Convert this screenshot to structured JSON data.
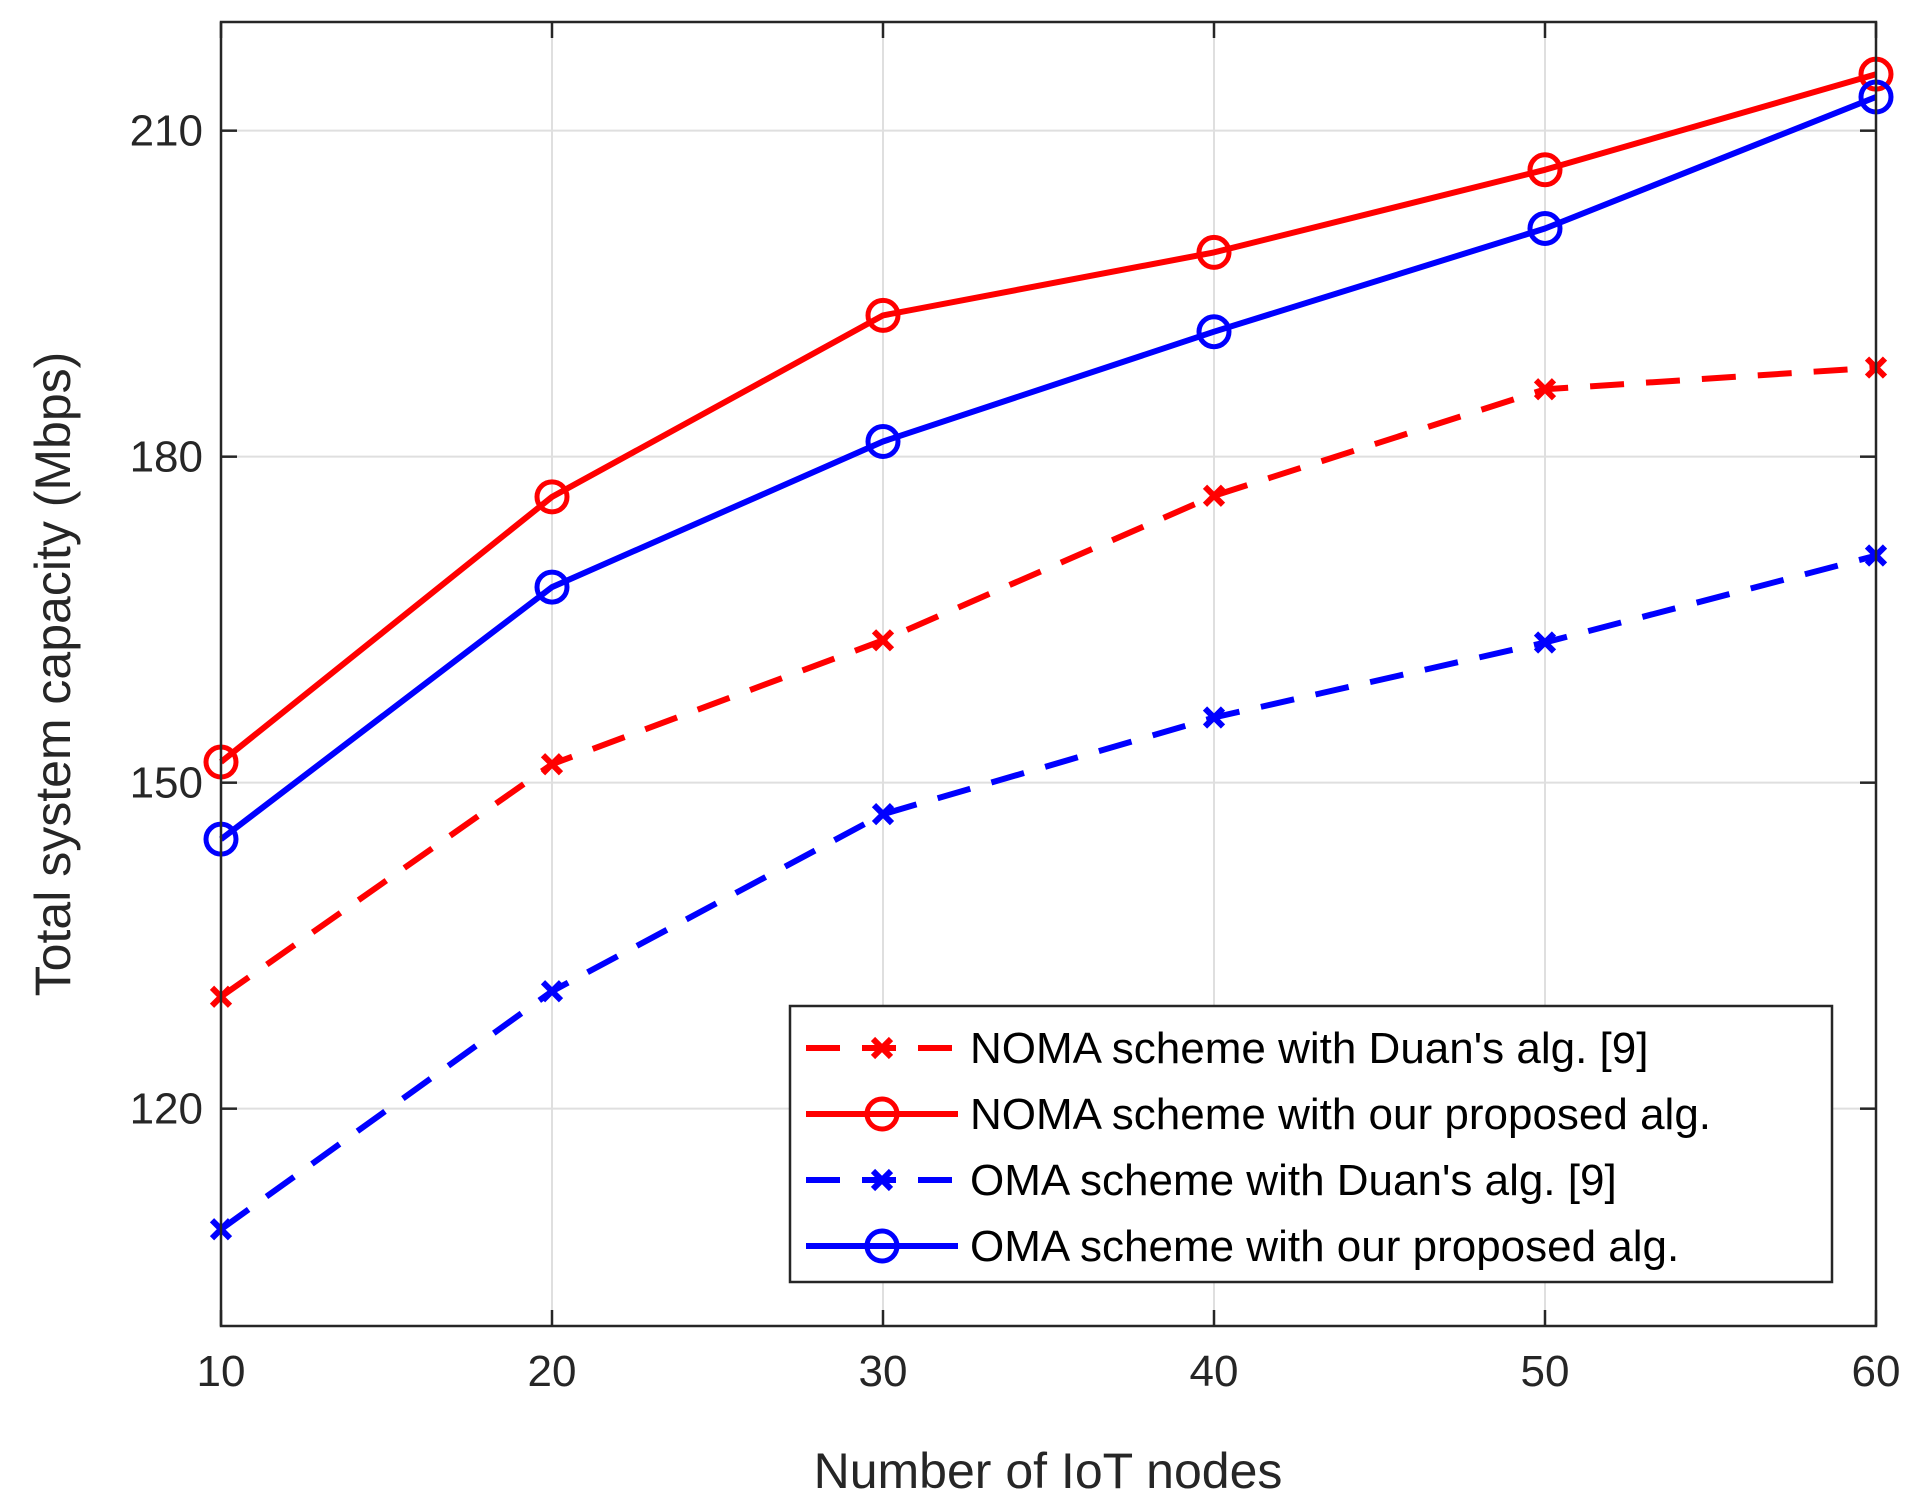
{
  "chart_data": {
    "type": "line",
    "xlabel": "Number of IoT nodes",
    "ylabel": "Total system capacity (Mbps)",
    "xlim": [
      10,
      60
    ],
    "ylim": [
      100,
      220
    ],
    "x": [
      10,
      20,
      30,
      40,
      50,
      60
    ],
    "xticks": [
      10,
      20,
      30,
      40,
      50,
      60
    ],
    "xtick_labels": [
      "10",
      "20",
      "30",
      "40",
      "50",
      "60"
    ],
    "yticks": [
      120,
      150,
      180,
      210
    ],
    "ytick_labels": [
      "120",
      "150",
      "180",
      "210"
    ],
    "grid": true,
    "legend_position": "bottom-right",
    "series": [
      {
        "name": "NOMA scheme with Duan's alg. [9]",
        "values": [
          130.3,
          151.7,
          163.1,
          176.4,
          186.2,
          188.2
        ],
        "color": "#ff0000",
        "line_style": "dashed",
        "marker": "x"
      },
      {
        "name": "NOMA scheme with our proposed alg.",
        "values": [
          151.9,
          176.3,
          193.0,
          198.8,
          206.4,
          215.2
        ],
        "color": "#ff0000",
        "line_style": "solid",
        "marker": "o"
      },
      {
        "name": "OMA scheme with Duan's alg. [9]",
        "values": [
          108.9,
          130.8,
          147.1,
          156.0,
          162.9,
          170.9
        ],
        "color": "#0000ff",
        "line_style": "dashed",
        "marker": "x"
      },
      {
        "name": "OMA scheme with our proposed alg.",
        "values": [
          144.8,
          168.0,
          181.4,
          191.5,
          201.0,
          213.1
        ],
        "color": "#0000ff",
        "line_style": "solid",
        "marker": "o"
      }
    ]
  }
}
